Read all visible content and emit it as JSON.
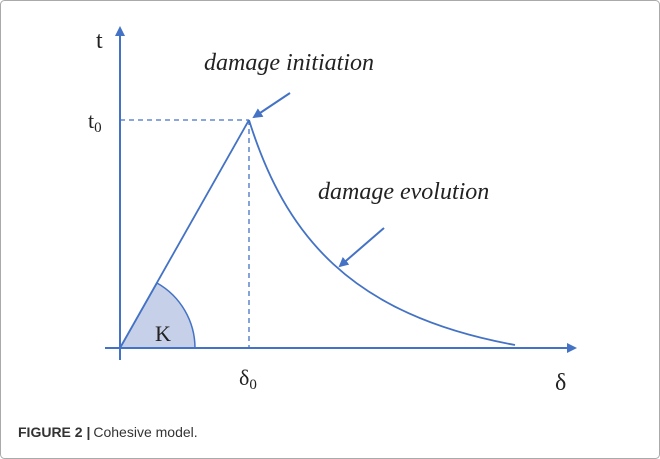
{
  "diagram": {
    "y_axis_label": "t",
    "x_axis_label": "δ",
    "peak_traction": {
      "base": "t",
      "sub": "0"
    },
    "peak_separation": {
      "base": "δ",
      "sub": "0"
    },
    "stiffness_label": "K",
    "annotations": [
      "damage initiation",
      "damage evolution"
    ]
  },
  "caption": {
    "label": "FIGURE 2 |",
    "text": "Cohesive model."
  }
}
